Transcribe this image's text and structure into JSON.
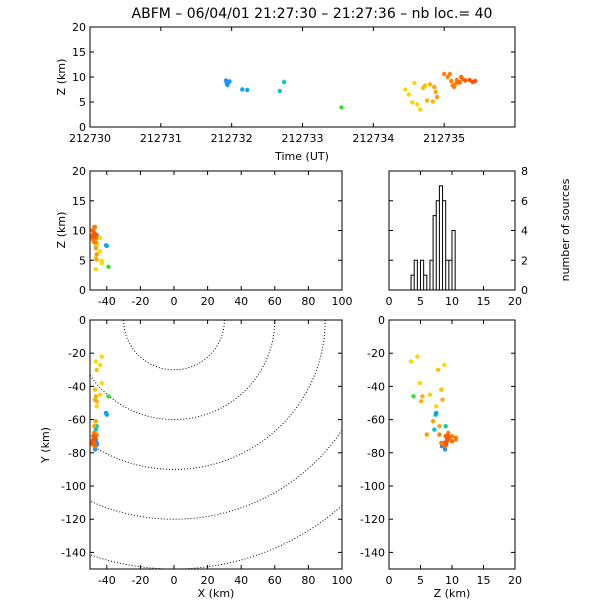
{
  "title": "ABFM – 06/04/01 21:27:30 – 21:27:36 – nb loc.=      40",
  "chart_data": [
    {
      "id": "time-height",
      "type": "scatter",
      "xlabel": "Time (UT)",
      "ylabel": "Z (km)",
      "xlim": [
        212730,
        212736
      ],
      "ylim": [
        0,
        20
      ],
      "xticks": [
        212730,
        212731,
        212732,
        212733,
        212734,
        212735
      ],
      "yticks": [
        0,
        5,
        10,
        15,
        20
      ]
    },
    {
      "id": "x-height",
      "type": "scatter",
      "xlabel": "",
      "ylabel": "Z (km)",
      "xlim": [
        -50,
        100
      ],
      "ylim": [
        0,
        20
      ],
      "xticks": [
        -40,
        -20,
        0,
        20,
        40,
        60,
        80,
        100
      ],
      "yticks": [
        0,
        5,
        10,
        15,
        20
      ]
    },
    {
      "id": "height-histogram",
      "type": "bar",
      "xlabel": "",
      "ylabel": "number of sources",
      "xlim": [
        0,
        20
      ],
      "ylim": [
        0,
        8
      ],
      "xticks": [
        0,
        5,
        10,
        15,
        20
      ],
      "yticks": [
        0,
        2,
        4,
        6,
        8
      ],
      "bin_width": 0.5,
      "bins": [
        [
          3.5,
          1
        ],
        [
          4.0,
          2
        ],
        [
          5.0,
          2
        ],
        [
          5.5,
          1
        ],
        [
          6.5,
          2
        ],
        [
          7.0,
          5
        ],
        [
          7.5,
          6
        ],
        [
          8.0,
          7
        ],
        [
          8.5,
          6
        ],
        [
          9.0,
          2
        ],
        [
          9.5,
          2
        ],
        [
          10.0,
          4
        ]
      ]
    },
    {
      "id": "plan-view",
      "type": "scatter",
      "xlabel": "X (km)",
      "ylabel": "Y (km)",
      "xlim": [
        -50,
        100
      ],
      "ylim": [
        -150,
        0
      ],
      "xticks": [
        -40,
        -20,
        0,
        20,
        40,
        60,
        80,
        100
      ],
      "yticks": [
        -140,
        -120,
        -100,
        -80,
        -60,
        -40,
        -20,
        0
      ],
      "range_rings_km": [
        30,
        60,
        90,
        120,
        150
      ],
      "ring_center": [
        0,
        0
      ]
    },
    {
      "id": "height-y",
      "type": "scatter",
      "xlabel": "Z (km)",
      "ylabel": "",
      "xlim": [
        0,
        20
      ],
      "ylim": [
        -150,
        0
      ],
      "xticks": [
        0,
        5,
        10,
        15,
        20
      ],
      "yticks": [
        -140,
        -120,
        -100,
        -80,
        -60,
        -40,
        -20,
        0
      ]
    }
  ],
  "sources": [
    {
      "t": 212731.92,
      "x": -46.5,
      "y": -72,
      "z": 9.3,
      "color": "#1e90ff"
    },
    {
      "t": 212731.93,
      "x": -46.0,
      "y": -74,
      "z": 8.8,
      "color": "#1e90ff"
    },
    {
      "t": 212731.94,
      "x": -46.8,
      "y": -76,
      "z": 8.4,
      "color": "#1e90ff"
    },
    {
      "t": 212731.95,
      "x": -47.0,
      "y": -78,
      "z": 8.9,
      "color": "#1e90ff"
    },
    {
      "t": 212731.97,
      "x": -45.8,
      "y": -75,
      "z": 9.1,
      "color": "#1e90ff"
    },
    {
      "t": 212732.15,
      "x": -40.5,
      "y": -56,
      "z": 7.5,
      "color": "#00aaee"
    },
    {
      "t": 212732.22,
      "x": -40.0,
      "y": -57,
      "z": 7.4,
      "color": "#00aaee"
    },
    {
      "t": 212732.68,
      "x": -46.5,
      "y": -66,
      "z": 7.2,
      "color": "#00c8c8"
    },
    {
      "t": 212732.74,
      "x": -46.0,
      "y": -64,
      "z": 9.0,
      "color": "#00d0c0"
    },
    {
      "t": 212733.55,
      "x": -39.0,
      "y": -46,
      "z": 3.9,
      "color": "#33dd33"
    },
    {
      "t": 212734.45,
      "x": -46.0,
      "y": -52,
      "z": 7.5,
      "color": "#ffd700"
    },
    {
      "t": 212734.5,
      "x": -44.0,
      "y": -45,
      "z": 6.5,
      "color": "#ffd700"
    },
    {
      "t": 212734.55,
      "x": -43.0,
      "y": -38,
      "z": 4.9,
      "color": "#ffd700"
    },
    {
      "t": 212734.58,
      "x": -44.0,
      "y": -27,
      "z": 8.8,
      "color": "#ffd700"
    },
    {
      "t": 212734.62,
      "x": -43.0,
      "y": -22,
      "z": 4.5,
      "color": "#ffd700"
    },
    {
      "t": 212734.66,
      "x": -46.5,
      "y": -25,
      "z": 3.5,
      "color": "#ffd700"
    },
    {
      "t": 212734.7,
      "x": -46.0,
      "y": -30,
      "z": 7.8,
      "color": "#ffc000"
    },
    {
      "t": 212734.73,
      "x": -47.0,
      "y": -42,
      "z": 8.3,
      "color": "#ffc000"
    },
    {
      "t": 212734.76,
      "x": -46.5,
      "y": -46,
      "z": 5.3,
      "color": "#ffb000"
    },
    {
      "t": 212734.8,
      "x": -47.0,
      "y": -48,
      "z": 8.5,
      "color": "#ffb000"
    },
    {
      "t": 212734.84,
      "x": -46.0,
      "y": -49,
      "z": 5.1,
      "color": "#ffb000"
    },
    {
      "t": 212734.86,
      "x": -47.5,
      "y": -64,
      "z": 8.0,
      "color": "#ffa500"
    },
    {
      "t": 212734.88,
      "x": -46.5,
      "y": -61,
      "z": 7.0,
      "color": "#ffa500"
    },
    {
      "t": 212734.9,
      "x": -46.0,
      "y": -69,
      "z": 6.0,
      "color": "#ff9900"
    },
    {
      "t": 212735.0,
      "x": -47.0,
      "y": -71,
      "z": 10.6,
      "color": "#ff7f00"
    },
    {
      "t": 212735.05,
      "x": -48.0,
      "y": -70,
      "z": 10.0,
      "color": "#ff7f00"
    },
    {
      "t": 212735.08,
      "x": -47.5,
      "y": -72,
      "z": 10.6,
      "color": "#ff7f00"
    },
    {
      "t": 212735.1,
      "x": -48.5,
      "y": -73,
      "z": 9.2,
      "color": "#ff7f00"
    },
    {
      "t": 212735.12,
      "x": -48.0,
      "y": -74,
      "z": 8.3,
      "color": "#ff7f00"
    },
    {
      "t": 212735.14,
      "x": -47.0,
      "y": -69,
      "z": 8.0,
      "color": "#ff7f00"
    },
    {
      "t": 212735.16,
      "x": -48.5,
      "y": -75,
      "z": 8.6,
      "color": "#ff7f00"
    },
    {
      "t": 212735.18,
      "x": -47.5,
      "y": -68,
      "z": 9.4,
      "color": "#ff7f00"
    },
    {
      "t": 212735.2,
      "x": -48.0,
      "y": -70,
      "z": 9.0,
      "color": "#ff6a00"
    },
    {
      "t": 212735.22,
      "x": -47.0,
      "y": -76,
      "z": 8.9,
      "color": "#ff6a00"
    },
    {
      "t": 212735.24,
      "x": -48.5,
      "y": -73,
      "z": 10.0,
      "color": "#ff6a00"
    },
    {
      "t": 212735.26,
      "x": -47.5,
      "y": -71,
      "z": 9.6,
      "color": "#ff6a00"
    },
    {
      "t": 212735.3,
      "x": -48.0,
      "y": -72,
      "z": 9.3,
      "color": "#ff5a00"
    },
    {
      "t": 212735.36,
      "x": -47.0,
      "y": -70,
      "z": 9.4,
      "color": "#ff5a00"
    },
    {
      "t": 212735.4,
      "x": -48.5,
      "y": -74,
      "z": 9.0,
      "color": "#ff5500"
    },
    {
      "t": 212735.44,
      "x": -47.5,
      "y": -72,
      "z": 9.2,
      "color": "#ff5500"
    }
  ]
}
